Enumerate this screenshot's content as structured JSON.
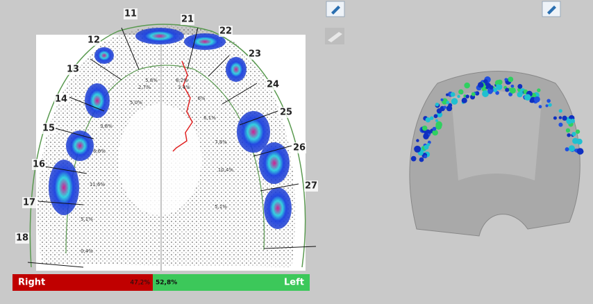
{
  "occlusion_view": {
    "teeth": [
      11,
      21,
      12,
      22,
      13,
      23,
      14,
      24,
      15,
      25,
      16,
      26,
      17,
      27,
      18
    ],
    "zone_percents": [
      "5,8%",
      "8,2%",
      "2,7%",
      "3,4%",
      "5,0%",
      "6%",
      "6,1%",
      "3,8%",
      "7,8%",
      "6,6%",
      "10,4%",
      "11,6%",
      "5,1%",
      "5,1%",
      "0,4%"
    ],
    "balance": {
      "categories": [
        "Right",
        "Left"
      ],
      "values": [
        47.2,
        52.8
      ],
      "value_labels": [
        "47,2%",
        "52,8%"
      ],
      "colors": [
        "#c00000",
        "#3cc85a"
      ]
    }
  }
}
